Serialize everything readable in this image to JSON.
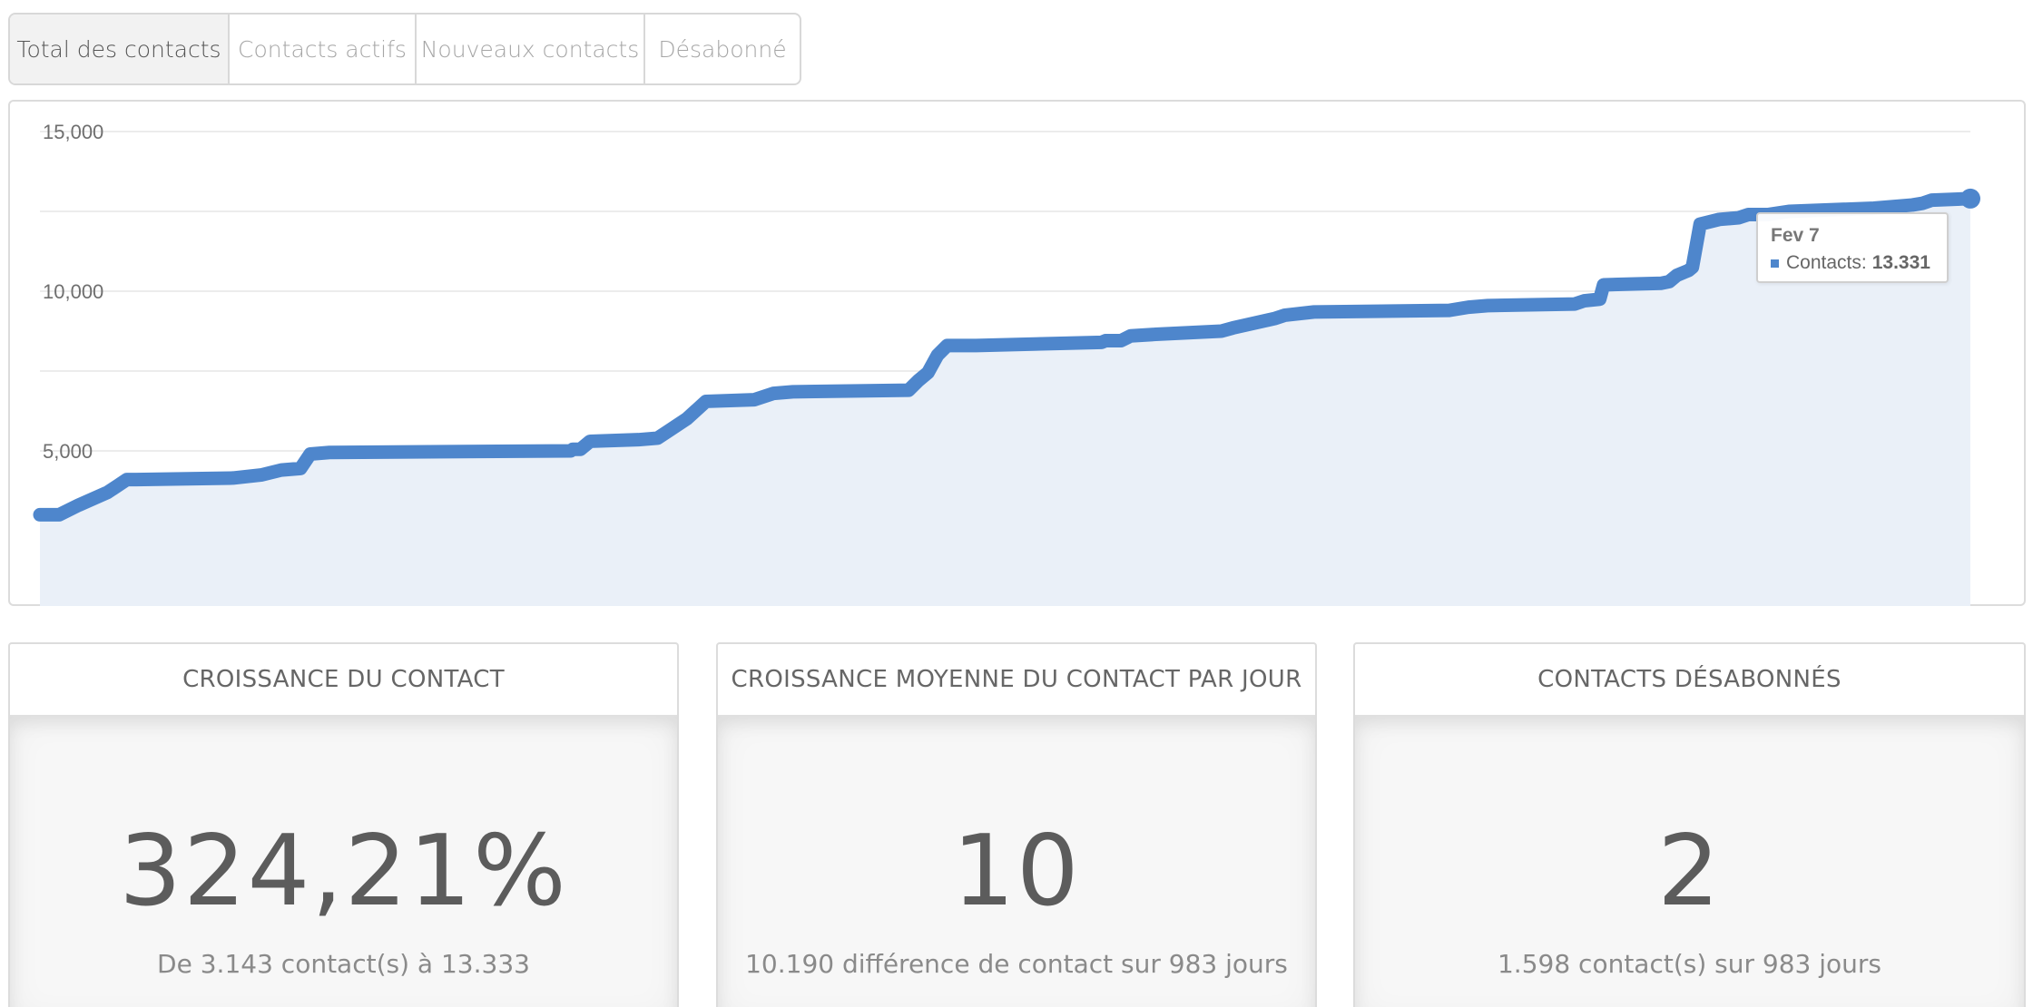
{
  "tabs": [
    {
      "label": "Total des contacts",
      "active": true
    },
    {
      "label": "Contacts actifs",
      "active": false
    },
    {
      "label": "Nouveaux contacts",
      "active": false
    },
    {
      "label": "Désabonné",
      "active": false
    }
  ],
  "chart_data": {
    "type": "area",
    "title": "",
    "xlabel": "",
    "ylabel": "",
    "ylim": [
      0,
      15000
    ],
    "yticks": [
      "15,000",
      "10,000",
      "5,000"
    ],
    "grid": true,
    "legend": "none",
    "color": "#4e86cc",
    "fill_color": "#eaf0f8",
    "series": [
      {
        "x": [
          0,
          0.01,
          0.02,
          0.035,
          0.045,
          0.05,
          0.1,
          0.115,
          0.125,
          0.135,
          0.14,
          0.15,
          0.275,
          0.276,
          0.28,
          0.285,
          0.31,
          0.32,
          0.325,
          0.335,
          0.345,
          0.37,
          0.375,
          0.38,
          0.39,
          0.45,
          0.455,
          0.46,
          0.465,
          0.47,
          0.485,
          0.55,
          0.552,
          0.56,
          0.565,
          0.578,
          0.612,
          0.618,
          0.64,
          0.645,
          0.66,
          0.73,
          0.735,
          0.74,
          0.75,
          0.795,
          0.8,
          0.808,
          0.81,
          0.84,
          0.844,
          0.848,
          0.852,
          0.854,
          0.856,
          0.86,
          0.87,
          0.88,
          0.885,
          0.895,
          0.906,
          0.95,
          0.97,
          0.975,
          0.98,
          1
        ],
        "y": [
          3000,
          3000,
          3300,
          3700,
          4100,
          4100,
          4150,
          4250,
          4400,
          4450,
          4900,
          4950,
          5000,
          5050,
          5050,
          5300,
          5350,
          5400,
          5600,
          6000,
          6550,
          6600,
          6700,
          6800,
          6850,
          6900,
          7200,
          7450,
          8000,
          8300,
          8300,
          8400,
          8450,
          8450,
          8600,
          8650,
          8750,
          8850,
          9150,
          9250,
          9350,
          9400,
          9450,
          9500,
          9550,
          9600,
          9700,
          9750,
          10200,
          10250,
          10300,
          10500,
          10600,
          10650,
          10750,
          12100,
          12250,
          12300,
          12400,
          12400,
          12500,
          12600,
          12700,
          12750,
          12850,
          12900
        ],
        "name": ""
      }
    ]
  },
  "tooltip": {
    "date": "Fev 7",
    "label": "Contacts:",
    "value": "13.331"
  },
  "cards": [
    {
      "title": "CROISSANCE DU CONTACT",
      "value": "324,21%",
      "detail": "De 3.143 contact(s) à 13.333"
    },
    {
      "title": "CROISSANCE MOYENNE DU CONTACT PAR JOUR",
      "value": "10",
      "detail": "10.190 différence de contact sur 983 jours"
    },
    {
      "title": "CONTACTS DÉSABONNÉS",
      "value": "2",
      "detail": "1.598 contact(s) sur 983 jours"
    }
  ]
}
